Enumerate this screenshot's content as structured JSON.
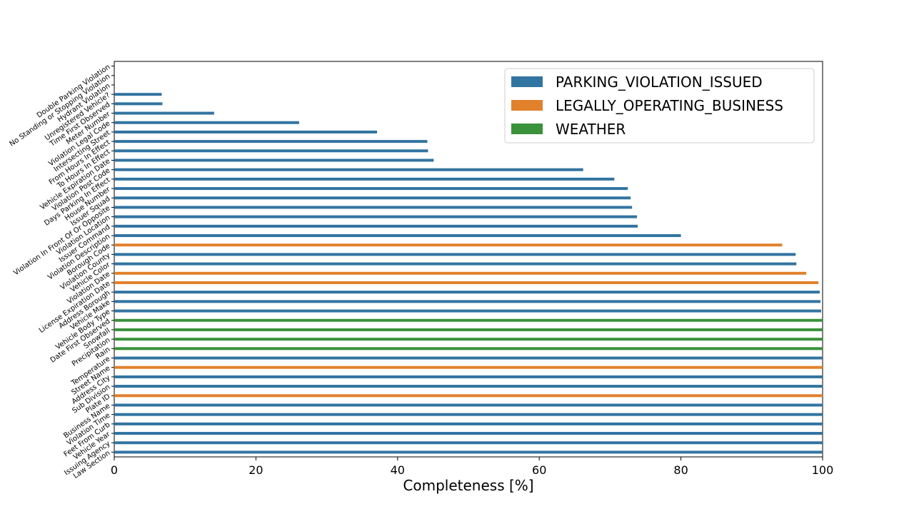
{
  "chart_data": {
    "type": "bar",
    "orientation": "horizontal",
    "title": "",
    "xlabel": "Completeness [%]",
    "ylabel": "",
    "xlim": [
      0,
      100
    ],
    "xticks": [
      0,
      20,
      40,
      60,
      80,
      100
    ],
    "grid": false,
    "legend_position": "top-right",
    "series": [
      {
        "name": "PARKING_VIOLATION_ISSUED",
        "color": "#3274a1"
      },
      {
        "name": "LEGALLY_OPERATING_BUSINESS",
        "color": "#e1812c"
      },
      {
        "name": "WEATHER",
        "color": "#3a923a"
      }
    ],
    "bars": [
      {
        "category": "Double Parking Violation",
        "series": "PARKING_VIOLATION_ISSUED",
        "value": 0
      },
      {
        "category": "No Standing or Stopping Violation",
        "series": "PARKING_VIOLATION_ISSUED",
        "value": 0
      },
      {
        "category": "Hydrant Violation",
        "series": "PARKING_VIOLATION_ISSUED",
        "value": 0
      },
      {
        "category": "Unregistered Vehicle?",
        "series": "PARKING_VIOLATION_ISSUED",
        "value": 6.7
      },
      {
        "category": "Time First Observed",
        "series": "PARKING_VIOLATION_ISSUED",
        "value": 6.8
      },
      {
        "category": "Meter Number",
        "series": "PARKING_VIOLATION_ISSUED",
        "value": 14.1
      },
      {
        "category": "Violation Legal Code",
        "series": "PARKING_VIOLATION_ISSUED",
        "value": 26.1
      },
      {
        "category": "Intersecting Street",
        "series": "PARKING_VIOLATION_ISSUED",
        "value": 37.1
      },
      {
        "category": "From Hours In Effect",
        "series": "PARKING_VIOLATION_ISSUED",
        "value": 44.2
      },
      {
        "category": "To Hours In Effect",
        "series": "PARKING_VIOLATION_ISSUED",
        "value": 44.3
      },
      {
        "category": "Vehicle Expiration Date",
        "series": "PARKING_VIOLATION_ISSUED",
        "value": 45.1
      },
      {
        "category": "Violation Post Code",
        "series": "PARKING_VIOLATION_ISSUED",
        "value": 66.2
      },
      {
        "category": "Days Parking In Effect",
        "series": "PARKING_VIOLATION_ISSUED",
        "value": 70.6
      },
      {
        "category": "House Number",
        "series": "PARKING_VIOLATION_ISSUED",
        "value": 72.5
      },
      {
        "category": "Issuer Squad",
        "series": "PARKING_VIOLATION_ISSUED",
        "value": 72.9
      },
      {
        "category": "Violation In Front Of Or Opposite",
        "series": "PARKING_VIOLATION_ISSUED",
        "value": 73.1
      },
      {
        "category": "Violation Location",
        "series": "PARKING_VIOLATION_ISSUED",
        "value": 73.8
      },
      {
        "category": "Issuer Command",
        "series": "PARKING_VIOLATION_ISSUED",
        "value": 73.9
      },
      {
        "category": "Violation Description",
        "series": "PARKING_VIOLATION_ISSUED",
        "value": 80.0
      },
      {
        "category": "Borough Code",
        "series": "LEGALLY_OPERATING_BUSINESS",
        "value": 94.3
      },
      {
        "category": "Violation County",
        "series": "PARKING_VIOLATION_ISSUED",
        "value": 96.2
      },
      {
        "category": "Vehicle Color",
        "series": "PARKING_VIOLATION_ISSUED",
        "value": 96.3
      },
      {
        "category": "Violation Date",
        "series": "LEGALLY_OPERATING_BUSINESS",
        "value": 97.7
      },
      {
        "category": "License Expiration Date",
        "series": "LEGALLY_OPERATING_BUSINESS",
        "value": 99.4
      },
      {
        "category": "Address Borough",
        "series": "PARKING_VIOLATION_ISSUED",
        "value": 99.6
      },
      {
        "category": "Vehicle Make",
        "series": "PARKING_VIOLATION_ISSUED",
        "value": 99.7
      },
      {
        "category": "Vehicle Body Type",
        "series": "PARKING_VIOLATION_ISSUED",
        "value": 99.8
      },
      {
        "category": "Date First Observed",
        "series": "WEATHER",
        "value": 100
      },
      {
        "category": "Snowfall",
        "series": "WEATHER",
        "value": 100
      },
      {
        "category": "Precipitation",
        "series": "WEATHER",
        "value": 100
      },
      {
        "category": "Rain",
        "series": "WEATHER",
        "value": 100
      },
      {
        "category": "Temperature",
        "series": "PARKING_VIOLATION_ISSUED",
        "value": 100
      },
      {
        "category": "Street Name",
        "series": "LEGALLY_OPERATING_BUSINESS",
        "value": 100
      },
      {
        "category": "Address City",
        "series": "PARKING_VIOLATION_ISSUED",
        "value": 100
      },
      {
        "category": "Sub Division",
        "series": "PARKING_VIOLATION_ISSUED",
        "value": 100
      },
      {
        "category": "Plate ID",
        "series": "LEGALLY_OPERATING_BUSINESS",
        "value": 100
      },
      {
        "category": "Business Name",
        "series": "PARKING_VIOLATION_ISSUED",
        "value": 100
      },
      {
        "category": "Violation Time",
        "series": "PARKING_VIOLATION_ISSUED",
        "value": 100
      },
      {
        "category": "Feet From Curb",
        "series": "PARKING_VIOLATION_ISSUED",
        "value": 100
      },
      {
        "category": "Vehicle Year",
        "series": "PARKING_VIOLATION_ISSUED",
        "value": 100
      },
      {
        "category": "Issuing Agency",
        "series": "PARKING_VIOLATION_ISSUED",
        "value": 100
      },
      {
        "category": "Law Section",
        "series": "PARKING_VIOLATION_ISSUED",
        "value": 100
      }
    ]
  }
}
